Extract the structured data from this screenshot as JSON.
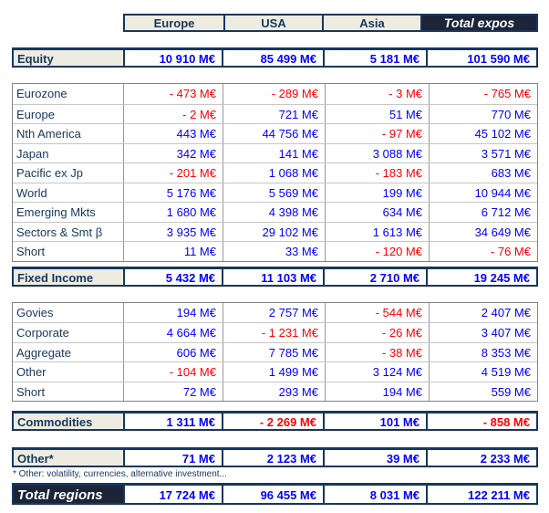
{
  "colors": {
    "value_positive": "#0000FF",
    "value_negative": "#FF0000",
    "label_fill": "#EEECE1",
    "dark_fill": "#1B2438",
    "navy_text": "#17375E"
  },
  "header": {
    "columns": [
      "Europe",
      "USA",
      "Asia",
      "Total expos"
    ]
  },
  "equity": {
    "label": "Equity",
    "values": [
      "10 910 M€",
      "85 499 M€",
      "5 181 M€",
      "101 590 M€"
    ]
  },
  "equity_rows": [
    {
      "label": "Eurozone",
      "values": [
        "- 473 M€",
        "- 289 M€",
        "- 3 M€",
        "- 765 M€"
      ]
    },
    {
      "label": "Europe",
      "values": [
        "- 2 M€",
        "721 M€",
        "51 M€",
        "770 M€"
      ]
    },
    {
      "label": "Nth America",
      "values": [
        "443 M€",
        "44 756 M€",
        "- 97 M€",
        "45 102 M€"
      ]
    },
    {
      "label": "Japan",
      "values": [
        "342 M€",
        "141 M€",
        "3 088 M€",
        "3 571 M€"
      ]
    },
    {
      "label": "Pacific ex Jp",
      "values": [
        "- 201 M€",
        "1 068 M€",
        "- 183 M€",
        "683 M€"
      ]
    },
    {
      "label": "World",
      "values": [
        "5 176 M€",
        "5 569 M€",
        "199 M€",
        "10 944 M€"
      ]
    },
    {
      "label": "Emerging Mkts",
      "values": [
        "1 680 M€",
        "4 398 M€",
        "634 M€",
        "6 712 M€"
      ]
    },
    {
      "label": "Sectors & Smt β",
      "values": [
        "3 935 M€",
        "29 102 M€",
        "1 613 M€",
        "34 649 M€"
      ]
    },
    {
      "label": "Short",
      "values": [
        "11 M€",
        "33 M€",
        "- 120 M€",
        "- 76 M€"
      ]
    }
  ],
  "fixed_income": {
    "label": "Fixed Income",
    "values": [
      "5 432 M€",
      "11 103 M€",
      "2 710 M€",
      "19 245 M€"
    ]
  },
  "fixed_income_rows": [
    {
      "label": "Govies",
      "values": [
        "194 M€",
        "2 757 M€",
        "- 544 M€",
        "2 407 M€"
      ]
    },
    {
      "label": "Corporate",
      "values": [
        "4 664 M€",
        "- 1 231 M€",
        "- 26 M€",
        "3 407 M€"
      ]
    },
    {
      "label": "Aggregate",
      "values": [
        "606 M€",
        "7 785 M€",
        "- 38 M€",
        "8 353 M€"
      ]
    },
    {
      "label": "Other",
      "values": [
        "- 104 M€",
        "1 499 M€",
        "3 124 M€",
        "4 519 M€"
      ]
    },
    {
      "label": "Short",
      "values": [
        "72 M€",
        "293 M€",
        "194 M€",
        "559 M€"
      ]
    }
  ],
  "commodities": {
    "label": "Commodities",
    "values": [
      "1 311 M€",
      "- 2 269 M€",
      "101 M€",
      "- 858 M€"
    ]
  },
  "other": {
    "label": "Other*",
    "values": [
      "71 M€",
      "2 123 M€",
      "39 M€",
      "2 233 M€"
    ]
  },
  "footnote": "* Other: volatility, currencies, alternative investment...",
  "total": {
    "label": "Total regions",
    "values": [
      "17 724 M€",
      "96 455 M€",
      "8 031 M€",
      "122 211 M€"
    ]
  }
}
